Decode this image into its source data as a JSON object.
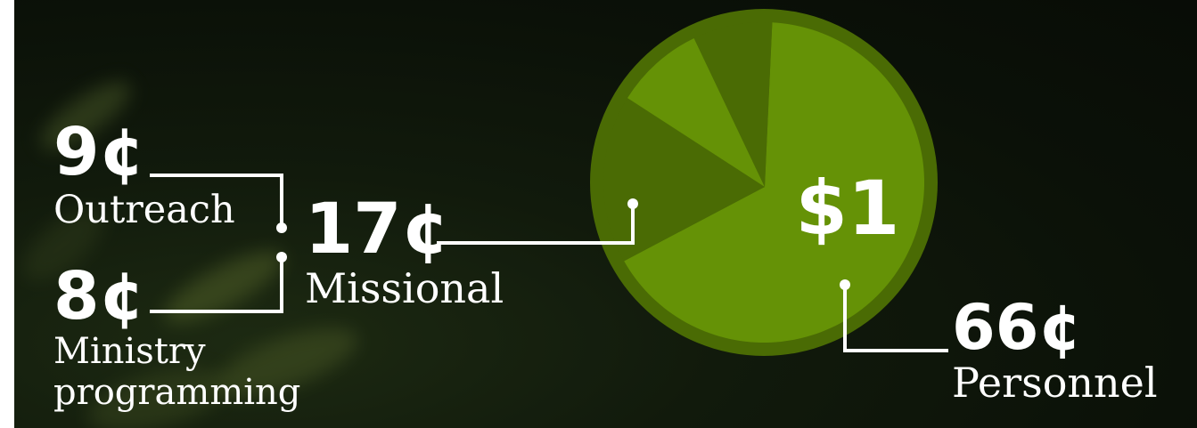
{
  "chart_data": {
    "type": "pie",
    "center_label": "$1",
    "slices": [
      {
        "value": 66,
        "amount": "66¢",
        "label": "Personnel",
        "color": "#659206"
      },
      {
        "value": 17,
        "amount": "17¢",
        "label": "Missional",
        "color": "#4a6b04"
      },
      {
        "value": 9,
        "amount": "9¢",
        "label": "Outreach",
        "color": "#659206"
      },
      {
        "value": 8,
        "amount": "8¢",
        "label": "Ministry programming",
        "label_lines": [
          "Ministry",
          "programming"
        ],
        "color": "#4a6b04"
      }
    ],
    "rim_color": "#4a6b04",
    "connector_color": "#ffffff"
  }
}
